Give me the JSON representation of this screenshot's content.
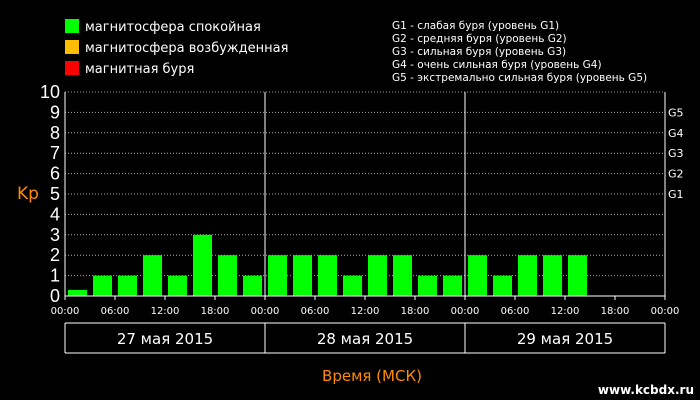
{
  "legend": [
    {
      "label": "магнитосфера спокойная",
      "color": "#00ff00"
    },
    {
      "label": "магнитосфера возбужденная",
      "color": "#ffbf00"
    },
    {
      "label": "магнитная буря",
      "color": "#ff0000"
    }
  ],
  "g_scale_notes": [
    "G1 - слабая буря (уровень G1)",
    "G2 - средняя буря (уровень G2)",
    "G3 - сильная буря (уровень G3)",
    "G4 - очень сильная буря (уровень G4)",
    "G5 - экстремально сильная буря (уровень G5)"
  ],
  "watermark": "www.kcbdx.ru",
  "chart_data": {
    "type": "bar",
    "ylabel": "Kp",
    "xlabel": "Время (МСК)",
    "ylim": [
      0,
      10
    ],
    "yticks": [
      0,
      1,
      2,
      3,
      4,
      5,
      6,
      7,
      8,
      9,
      10
    ],
    "g_levels": [
      {
        "label": "G1",
        "kp": 5
      },
      {
        "label": "G2",
        "kp": 6
      },
      {
        "label": "G3",
        "kp": 7
      },
      {
        "label": "G4",
        "kp": 8
      },
      {
        "label": "G5",
        "kp": 9
      }
    ],
    "xticks": [
      "00:00",
      "06:00",
      "12:00",
      "18:00",
      "00:00",
      "06:00",
      "12:00",
      "18:00",
      "00:00",
      "06:00",
      "12:00",
      "18:00",
      "00:00"
    ],
    "days": [
      "27 мая 2015",
      "28 мая 2015",
      "29 мая 2015"
    ],
    "interval_hours": 3,
    "grid": true,
    "series": [
      {
        "color": "#00ff00",
        "values": [
          0.3,
          1,
          1,
          2,
          1,
          3,
          2,
          1,
          2,
          2,
          2,
          1,
          2,
          2,
          1,
          1,
          2,
          1,
          2,
          2,
          2,
          null,
          null,
          null
        ]
      }
    ]
  }
}
